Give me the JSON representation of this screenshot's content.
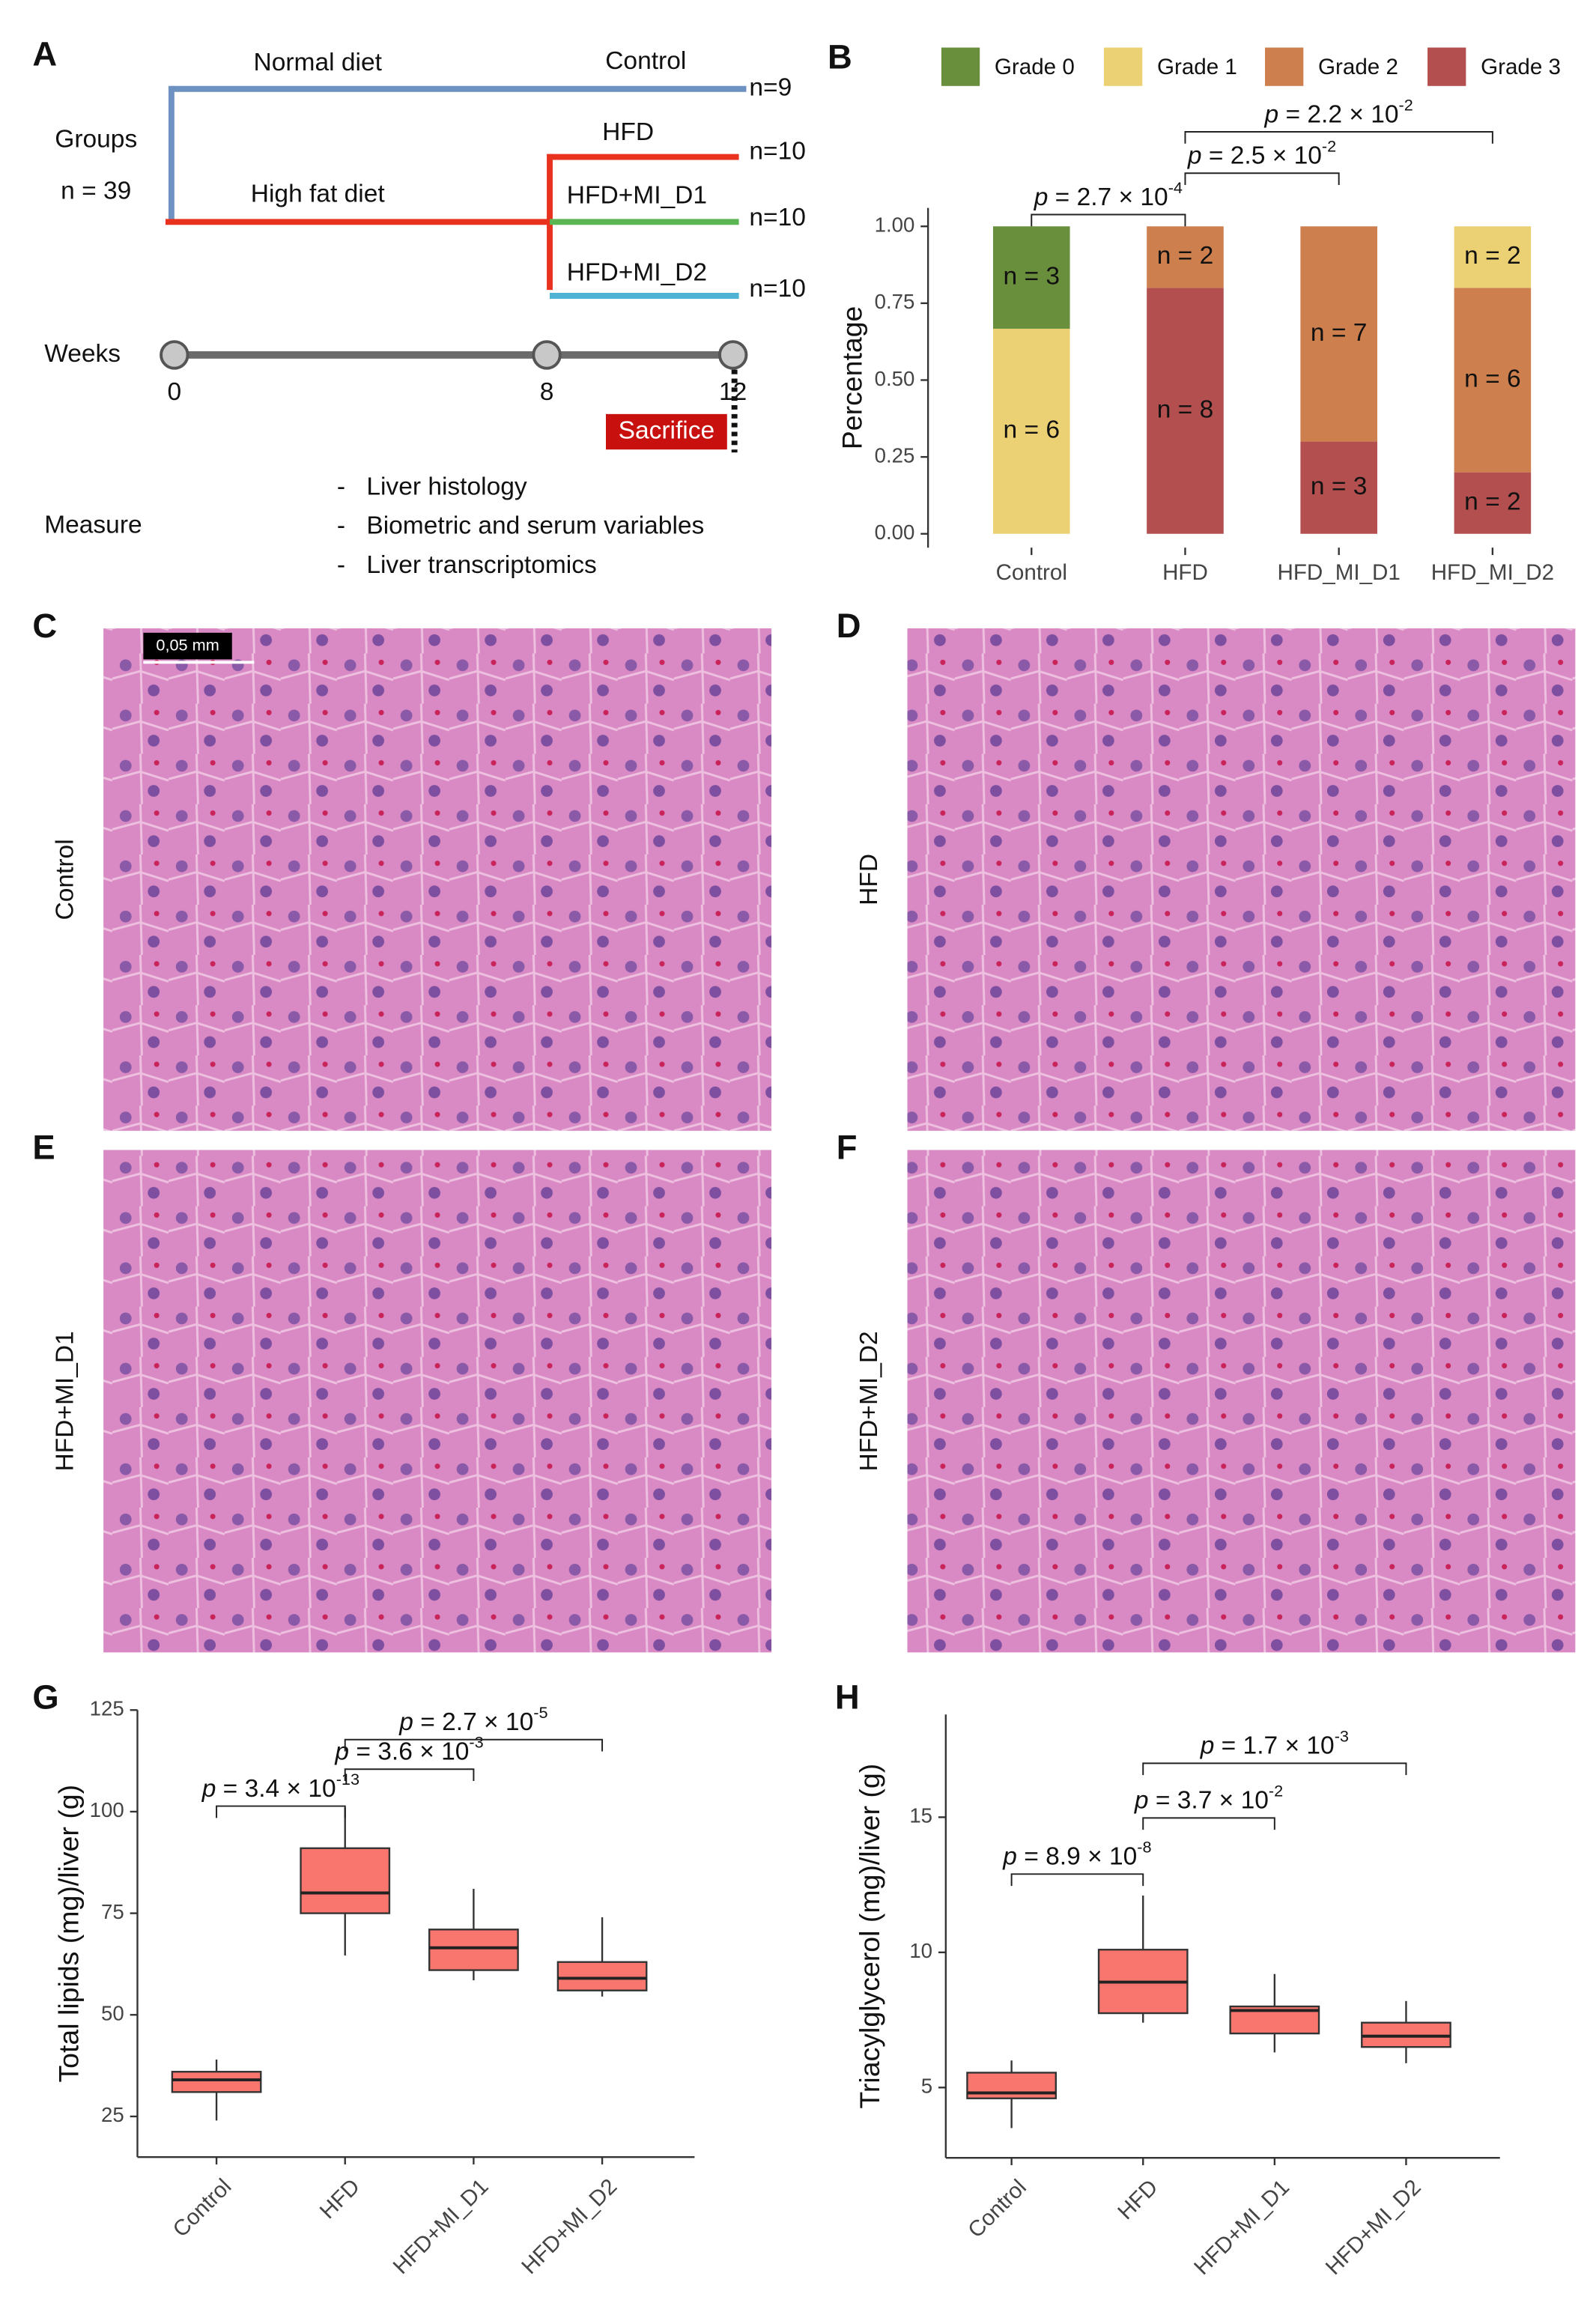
{
  "panel_a": {
    "label": "A",
    "groups": "Groups",
    "total": "n = 39",
    "normal_diet": "Normal diet",
    "high_fat_diet": "High fat diet",
    "arms": [
      {
        "name": "Control",
        "n": "n=9",
        "color": "#6d91c1"
      },
      {
        "name": "HFD",
        "n": "n=10",
        "color": "#e8321e"
      },
      {
        "name": "HFD+MI_D1",
        "n": "n=10",
        "color": "#5bb552"
      },
      {
        "name": "HFD+MI_D2",
        "n": "n=10",
        "color": "#4fb4d4"
      }
    ],
    "weeks": "Weeks",
    "timepoints": [
      0,
      8,
      12
    ],
    "sacrifice": "Sacrifice",
    "measure": "Measure",
    "bullet": "-",
    "measures": [
      "Liver histology",
      "Biometric and serum variables",
      "Liver transcriptomics"
    ]
  },
  "histology": {
    "scale_bar": "0,05 mm",
    "panels": [
      {
        "label": "C",
        "group": "Control"
      },
      {
        "label": "D",
        "group": "HFD"
      },
      {
        "label": "E",
        "group": "HFD+MI_D1"
      },
      {
        "label": "F",
        "group": "HFD+MI_D2"
      }
    ]
  },
  "chart_data": [
    {
      "type": "bar",
      "panel": "B",
      "stacked": true,
      "legend": "top",
      "ylabel": "Percentage",
      "categories": [
        "Control",
        "HFD",
        "HFD_MI_D1",
        "HFD_MI_D2"
      ],
      "series": [
        {
          "name": "Grade 0",
          "color": "#6a8f3c",
          "values": [
            0.333,
            0,
            0,
            0
          ],
          "value_labels": [
            "n = 3",
            null,
            null,
            null
          ]
        },
        {
          "name": "Grade 1",
          "color": "#ecd174",
          "values": [
            0.667,
            0,
            0,
            0.2
          ],
          "value_labels": [
            "n = 6",
            null,
            null,
            "n = 2"
          ]
        },
        {
          "name": "Grade 2",
          "color": "#cd7f4e",
          "values": [
            0,
            0.2,
            0.7,
            0.6
          ],
          "value_labels": [
            null,
            "n = 2",
            "n = 7",
            "n = 6"
          ]
        },
        {
          "name": "Grade 3",
          "color": "#b34f4f",
          "values": [
            0,
            0.8,
            0.3,
            0.2
          ],
          "value_labels": [
            null,
            "n = 8",
            "n = 3",
            "n = 2"
          ]
        }
      ],
      "ylim": [
        -0.045,
        1.06
      ],
      "yticks": [
        {
          "value": 0,
          "label": "0.00"
        },
        {
          "value": 0.25,
          "label": "0.25"
        },
        {
          "value": 0.5,
          "label": "0.50"
        },
        {
          "value": 0.75,
          "label": "0.75"
        },
        {
          "value": 1,
          "label": "1.00"
        }
      ],
      "annotations": [
        {
          "p": "p",
          "text": " = 2.7 × 10",
          "sup": "-4"
        },
        {
          "p": "p",
          "text": " = 2.5 × 10",
          "sup": "-2"
        },
        {
          "p": "p",
          "text": " = 2.2 × 10",
          "sup": "-2"
        }
      ]
    },
    {
      "type": "box",
      "panel": "G",
      "ylabel": "Total lipids (mg)/liver (g)",
      "color": "#f8766d",
      "categories": [
        "Control",
        "HFD",
        "HFD+MI_D1",
        "HFD+MI_D2"
      ],
      "stats": {
        "min": [
          24,
          64.6,
          58.5,
          54.5
        ],
        "q1": [
          31,
          75,
          61,
          56
        ],
        "median": [
          34,
          80,
          66.5,
          59
        ],
        "q3": [
          36,
          91,
          71,
          63
        ],
        "max": [
          39,
          101,
          81,
          74
        ]
      },
      "ylim": [
        15,
        125
      ],
      "yticks": [
        25,
        50,
        75,
        100,
        125
      ],
      "annotations": [
        {
          "p": "p",
          "text": " = 3.4 × 10",
          "sup": "-13"
        },
        {
          "p": "p",
          "text": " = 3.6 × 10",
          "sup": "-3"
        },
        {
          "p": "p",
          "text": " = 2.7 × 10",
          "sup": "-5"
        }
      ]
    },
    {
      "type": "box",
      "panel": "H",
      "ylabel": "Triacylglycerol (mg)/liver (g)",
      "color": "#f8766d",
      "categories": [
        "Control",
        "HFD",
        "HFD+MI_D1",
        "HFD+MI_D2"
      ],
      "stats": {
        "min": [
          3.5,
          7.4,
          6.3,
          5.9
        ],
        "q1": [
          4.6,
          7.75,
          7.0,
          6.5
        ],
        "median": [
          4.8,
          8.9,
          7.85,
          6.9
        ],
        "q3": [
          5.55,
          10.1,
          8.0,
          7.4
        ],
        "max": [
          6.0,
          12.1,
          9.2,
          8.2
        ]
      },
      "ylim": [
        2.4,
        18.8
      ],
      "yticks": [
        5,
        10,
        15
      ],
      "annotations": [
        {
          "p": "p",
          "text": " = 8.9 × 10",
          "sup": "-8"
        },
        {
          "p": "p",
          "text": " = 3.7 × 10",
          "sup": "-2"
        },
        {
          "p": "p",
          "text": " = 1.7 × 10",
          "sup": "-3"
        }
      ]
    }
  ]
}
